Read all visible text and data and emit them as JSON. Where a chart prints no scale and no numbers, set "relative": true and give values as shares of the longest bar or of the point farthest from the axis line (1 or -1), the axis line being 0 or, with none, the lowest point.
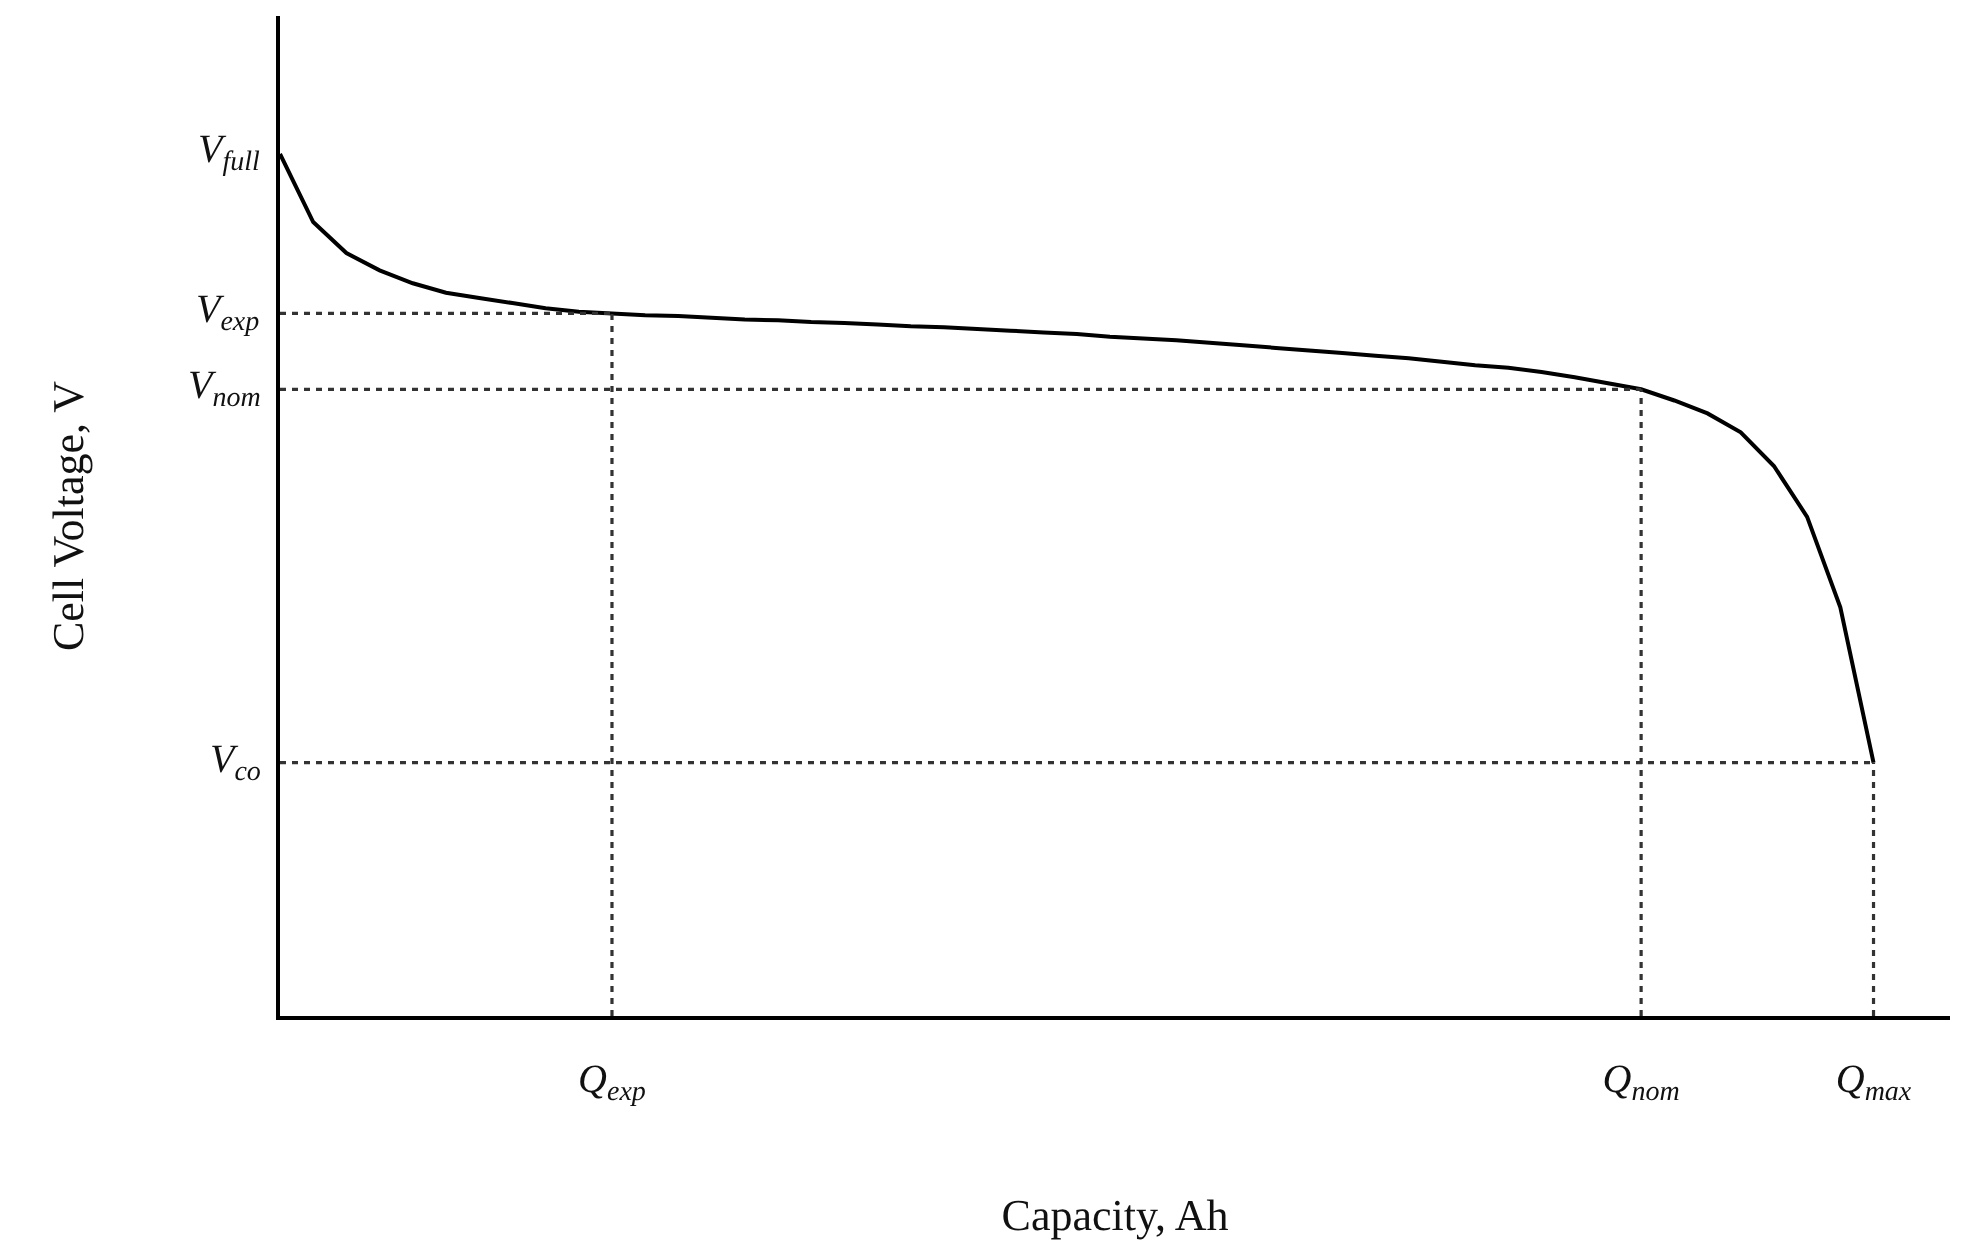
{
  "chart_data": {
    "type": "line",
    "xlabel": "Capacity, Ah",
    "ylabel": "Cell Voltage, V",
    "categories": [
      null,
      null,
      null,
      null,
      null,
      null,
      null,
      null,
      null,
      null,
      "Q$_{exp}$",
      null,
      null,
      null,
      null,
      null,
      null,
      null,
      null,
      null,
      null,
      null,
      null,
      null,
      null,
      null,
      null,
      null,
      null,
      null,
      null,
      null,
      null,
      null,
      null,
      null,
      null,
      null,
      null,
      null,
      null,
      "Q$_{nom}$",
      null,
      null,
      null,
      null,
      null,
      null,
      "Q$_{max}$"
    ],
    "series": [
      {
        "color": "#000000",
        "values": [
          1.0,
          0.921,
          0.885,
          0.865,
          0.85,
          0.839,
          0.833,
          0.827,
          0.821,
          0.817,
          0.815,
          0.813,
          0.812,
          0.81,
          0.808,
          0.807,
          0.805,
          0.804,
          0.802,
          0.8,
          0.799,
          0.797,
          0.795,
          0.793,
          0.791,
          0.788,
          0.786,
          0.784,
          0.781,
          0.778,
          0.775,
          0.772,
          0.769,
          0.766,
          0.763,
          0.759,
          0.755,
          0.752,
          0.747,
          0.741,
          0.734,
          0.727,
          0.714,
          0.699,
          0.677,
          0.638,
          0.579,
          0.474,
          0.294
        ]
      }
    ],
    "relative": true,
    "annotations": [
      "V$_{full}$"
    ],
    "ref_lines": [
      {
        "axis": "y",
        "value": 0.815,
        "label": "V$_{exp}$",
        "color": "#333333",
        "line_style": "dotted"
      },
      {
        "axis": "y",
        "value": 0.727,
        "label": "V$_{nom}$",
        "color": "#333333",
        "line_style": "dotted"
      },
      {
        "axis": "y",
        "value": 0.294,
        "label": "V$_{co}$",
        "color": "#333333",
        "line_style": "dotted"
      },
      {
        "axis": "x",
        "value": "Q$_{exp}$",
        "color": "#333333",
        "line_style": "dotted"
      },
      {
        "axis": "x",
        "value": "Q$_{nom}$",
        "color": "#333333",
        "line_style": "dotted"
      },
      {
        "axis": "x",
        "value": "Q$_{max}$",
        "color": "#333333",
        "line_style": "dotted"
      }
    ],
    "grid": false,
    "marker": "none",
    "line_style": "solid"
  }
}
